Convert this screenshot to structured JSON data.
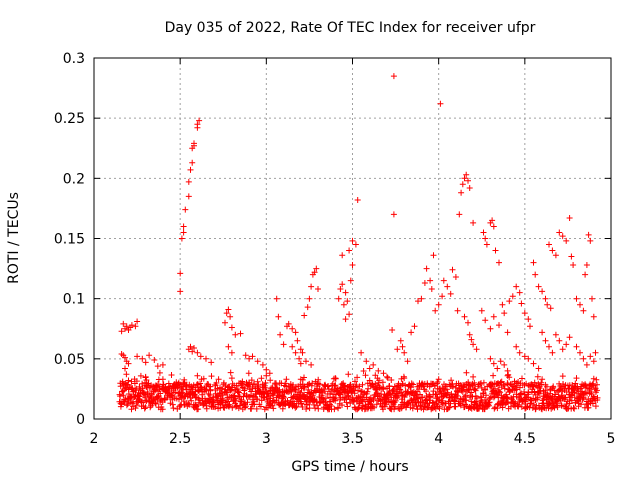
{
  "chart_data": {
    "type": "scatter",
    "title": "Day 035 of 2022, Rate Of TEC Index for receiver ufpr",
    "xlabel": "GPS time / hours",
    "ylabel": "ROTI / TECUs",
    "xlim": [
      2,
      5
    ],
    "ylim": [
      0,
      0.3
    ],
    "x_ticks": [
      "2",
      "2.5",
      "3",
      "3.5",
      "4",
      "4.5",
      "5"
    ],
    "y_ticks": [
      "0",
      "0.05",
      "0.1",
      "0.15",
      "0.2",
      "0.25",
      "0.3"
    ],
    "grid": true,
    "marker": "+",
    "color": "#ff0000",
    "series": [
      {
        "name": "",
        "points": [
          [
            2.16,
            0.073
          ],
          [
            2.17,
            0.079
          ],
          [
            2.18,
            0.075
          ],
          [
            2.19,
            0.077
          ],
          [
            2.2,
            0.074
          ],
          [
            2.21,
            0.076
          ],
          [
            2.22,
            0.078
          ],
          [
            2.24,
            0.077
          ],
          [
            2.25,
            0.081
          ],
          [
            2.16,
            0.054
          ],
          [
            2.17,
            0.053
          ],
          [
            2.18,
            0.051
          ],
          [
            2.2,
            0.046
          ],
          [
            2.19,
            0.048
          ],
          [
            2.18,
            0.042
          ],
          [
            2.25,
            0.052
          ],
          [
            2.28,
            0.05
          ],
          [
            2.3,
            0.047
          ],
          [
            2.32,
            0.053
          ],
          [
            2.35,
            0.049
          ],
          [
            2.37,
            0.044
          ],
          [
            2.4,
            0.045
          ],
          [
            2.5,
            0.106
          ],
          [
            2.5,
            0.121
          ],
          [
            2.51,
            0.15
          ],
          [
            2.52,
            0.155
          ],
          [
            2.52,
            0.16
          ],
          [
            2.53,
            0.174
          ],
          [
            2.55,
            0.185
          ],
          [
            2.55,
            0.197
          ],
          [
            2.56,
            0.207
          ],
          [
            2.57,
            0.213
          ],
          [
            2.57,
            0.225
          ],
          [
            2.58,
            0.229
          ],
          [
            2.58,
            0.227
          ],
          [
            2.6,
            0.242
          ],
          [
            2.6,
            0.245
          ],
          [
            2.61,
            0.248
          ],
          [
            2.55,
            0.058
          ],
          [
            2.56,
            0.06
          ],
          [
            2.57,
            0.056
          ],
          [
            2.58,
            0.059
          ],
          [
            2.6,
            0.055
          ],
          [
            2.62,
            0.052
          ],
          [
            2.65,
            0.05
          ],
          [
            2.68,
            0.047
          ],
          [
            2.76,
            0.08
          ],
          [
            2.77,
            0.088
          ],
          [
            2.78,
            0.091
          ],
          [
            2.79,
            0.085
          ],
          [
            2.8,
            0.076
          ],
          [
            2.82,
            0.07
          ],
          [
            2.85,
            0.071
          ],
          [
            2.78,
            0.06
          ],
          [
            2.8,
            0.055
          ],
          [
            2.88,
            0.053
          ],
          [
            2.9,
            0.05
          ],
          [
            2.92,
            0.052
          ],
          [
            2.95,
            0.048
          ],
          [
            2.98,
            0.045
          ],
          [
            3.0,
            0.041
          ],
          [
            3.02,
            0.038
          ],
          [
            3.06,
            0.1
          ],
          [
            3.07,
            0.085
          ],
          [
            3.08,
            0.07
          ],
          [
            3.1,
            0.062
          ],
          [
            3.12,
            0.077
          ],
          [
            3.13,
            0.079
          ],
          [
            3.15,
            0.075
          ],
          [
            3.17,
            0.072
          ],
          [
            3.18,
            0.065
          ],
          [
            3.2,
            0.058
          ],
          [
            3.21,
            0.055
          ],
          [
            3.22,
            0.086
          ],
          [
            3.24,
            0.093
          ],
          [
            3.25,
            0.1
          ],
          [
            3.26,
            0.11
          ],
          [
            3.27,
            0.12
          ],
          [
            3.28,
            0.122
          ],
          [
            3.29,
            0.125
          ],
          [
            3.3,
            0.108
          ],
          [
            3.15,
            0.06
          ],
          [
            3.17,
            0.055
          ],
          [
            3.19,
            0.05
          ],
          [
            3.2,
            0.046
          ],
          [
            3.23,
            0.048
          ],
          [
            3.26,
            0.045
          ],
          [
            3.42,
            0.1
          ],
          [
            3.43,
            0.108
          ],
          [
            3.44,
            0.112
          ],
          [
            3.45,
            0.095
          ],
          [
            3.46,
            0.105
          ],
          [
            3.47,
            0.098
          ],
          [
            3.48,
            0.087
          ],
          [
            3.46,
            0.083
          ],
          [
            3.44,
            0.136
          ],
          [
            3.48,
            0.14
          ],
          [
            3.5,
            0.148
          ],
          [
            3.52,
            0.145
          ],
          [
            3.53,
            0.182
          ],
          [
            3.5,
            0.128
          ],
          [
            3.49,
            0.115
          ],
          [
            3.55,
            0.055
          ],
          [
            3.58,
            0.048
          ],
          [
            3.6,
            0.042
          ],
          [
            3.62,
            0.045
          ],
          [
            3.65,
            0.04
          ],
          [
            3.68,
            0.038
          ],
          [
            3.7,
            0.035
          ],
          [
            3.74,
            0.285
          ],
          [
            3.74,
            0.17
          ],
          [
            3.73,
            0.074
          ],
          [
            3.76,
            0.058
          ],
          [
            3.78,
            0.065
          ],
          [
            3.79,
            0.06
          ],
          [
            3.8,
            0.055
          ],
          [
            3.82,
            0.048
          ],
          [
            3.84,
            0.072
          ],
          [
            3.86,
            0.077
          ],
          [
            3.88,
            0.098
          ],
          [
            3.9,
            0.1
          ],
          [
            3.92,
            0.113
          ],
          [
            3.93,
            0.125
          ],
          [
            3.95,
            0.115
          ],
          [
            3.96,
            0.108
          ],
          [
            3.97,
            0.136
          ],
          [
            3.98,
            0.09
          ],
          [
            4.0,
            0.095
          ],
          [
            4.01,
            0.262
          ],
          [
            4.02,
            0.102
          ],
          [
            4.03,
            0.115
          ],
          [
            4.05,
            0.11
          ],
          [
            4.07,
            0.104
          ],
          [
            4.08,
            0.124
          ],
          [
            4.1,
            0.118
          ],
          [
            4.11,
            0.09
          ],
          [
            4.12,
            0.17
          ],
          [
            4.13,
            0.188
          ],
          [
            4.14,
            0.195
          ],
          [
            4.15,
            0.2
          ],
          [
            4.16,
            0.203
          ],
          [
            4.17,
            0.198
          ],
          [
            4.18,
            0.192
          ],
          [
            4.2,
            0.163
          ],
          [
            4.15,
            0.085
          ],
          [
            4.17,
            0.08
          ],
          [
            4.18,
            0.07
          ],
          [
            4.19,
            0.066
          ],
          [
            4.2,
            0.062
          ],
          [
            4.22,
            0.058
          ],
          [
            4.26,
            0.155
          ],
          [
            4.27,
            0.15
          ],
          [
            4.28,
            0.145
          ],
          [
            4.3,
            0.163
          ],
          [
            4.31,
            0.165
          ],
          [
            4.32,
            0.16
          ],
          [
            4.33,
            0.14
          ],
          [
            4.35,
            0.13
          ],
          [
            4.25,
            0.09
          ],
          [
            4.27,
            0.082
          ],
          [
            4.3,
            0.075
          ],
          [
            4.32,
            0.085
          ],
          [
            4.35,
            0.078
          ],
          [
            4.37,
            0.095
          ],
          [
            4.38,
            0.088
          ],
          [
            4.4,
            0.072
          ],
          [
            4.41,
            0.098
          ],
          [
            4.43,
            0.102
          ],
          [
            4.45,
            0.11
          ],
          [
            4.47,
            0.105
          ],
          [
            4.48,
            0.096
          ],
          [
            4.5,
            0.088
          ],
          [
            4.52,
            0.083
          ],
          [
            4.53,
            0.077
          ],
          [
            4.55,
            0.13
          ],
          [
            4.56,
            0.12
          ],
          [
            4.58,
            0.11
          ],
          [
            4.6,
            0.106
          ],
          [
            4.62,
            0.1
          ],
          [
            4.63,
            0.095
          ],
          [
            4.65,
            0.092
          ],
          [
            4.64,
            0.145
          ],
          [
            4.66,
            0.14
          ],
          [
            4.68,
            0.136
          ],
          [
            4.7,
            0.155
          ],
          [
            4.72,
            0.152
          ],
          [
            4.74,
            0.148
          ],
          [
            4.76,
            0.167
          ],
          [
            4.77,
            0.135
          ],
          [
            4.78,
            0.128
          ],
          [
            4.6,
            0.072
          ],
          [
            4.62,
            0.065
          ],
          [
            4.64,
            0.06
          ],
          [
            4.66,
            0.055
          ],
          [
            4.68,
            0.07
          ],
          [
            4.7,
            0.065
          ],
          [
            4.72,
            0.058
          ],
          [
            4.74,
            0.062
          ],
          [
            4.76,
            0.068
          ],
          [
            4.8,
            0.1
          ],
          [
            4.82,
            0.095
          ],
          [
            4.84,
            0.09
          ],
          [
            4.85,
            0.12
          ],
          [
            4.86,
            0.128
          ],
          [
            4.87,
            0.153
          ],
          [
            4.88,
            0.148
          ],
          [
            4.89,
            0.1
          ],
          [
            4.9,
            0.085
          ],
          [
            4.8,
            0.06
          ],
          [
            4.82,
            0.055
          ],
          [
            4.84,
            0.05
          ],
          [
            4.86,
            0.045
          ],
          [
            4.88,
            0.052
          ],
          [
            4.9,
            0.048
          ],
          [
            4.91,
            0.055
          ],
          [
            4.45,
            0.06
          ],
          [
            4.47,
            0.055
          ],
          [
            4.5,
            0.052
          ],
          [
            4.52,
            0.05
          ],
          [
            4.55,
            0.046
          ],
          [
            4.58,
            0.042
          ],
          [
            4.3,
            0.05
          ],
          [
            4.32,
            0.046
          ],
          [
            4.34,
            0.042
          ],
          [
            4.36,
            0.048
          ],
          [
            4.38,
            0.045
          ],
          [
            4.4,
            0.04
          ],
          [
            2.2,
            0.032
          ],
          [
            2.3,
            0.035
          ],
          [
            2.4,
            0.033
          ],
          [
            2.6,
            0.036
          ],
          [
            2.8,
            0.034
          ],
          [
            3.0,
            0.036
          ],
          [
            3.2,
            0.033
          ],
          [
            3.4,
            0.034
          ],
          [
            3.6,
            0.032
          ],
          [
            3.8,
            0.034
          ],
          [
            4.0,
            0.033
          ],
          [
            4.2,
            0.035
          ],
          [
            4.4,
            0.036
          ],
          [
            4.6,
            0.033
          ],
          [
            4.8,
            0.034
          ]
        ]
      }
    ]
  }
}
